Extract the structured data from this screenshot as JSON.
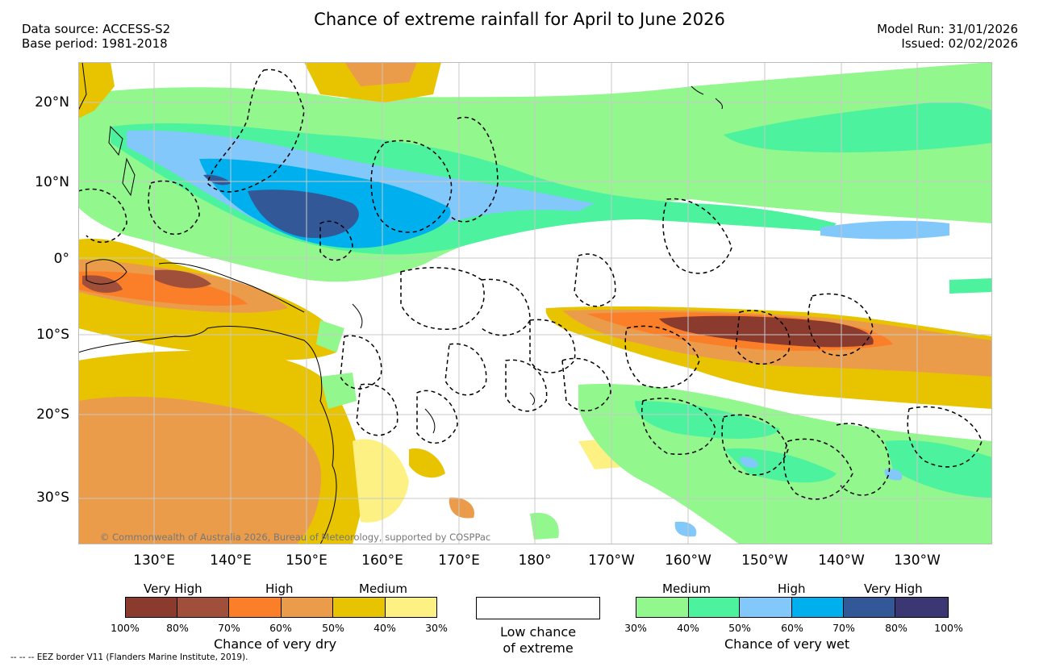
{
  "header": {
    "title": "Chance of extreme rainfall for April to June 2026",
    "data_source": "Data source: ACCESS-S2",
    "base_period": "Base period: 1981-2018",
    "model_run": "Model Run: 31/01/2026",
    "issued": "Issued: 02/02/2026"
  },
  "map": {
    "lat_labels": [
      "20°N",
      "10°N",
      "0°",
      "10°S",
      "20°S",
      "30°S"
    ],
    "lon_labels": [
      "130°E",
      "140°E",
      "150°E",
      "160°E",
      "170°E",
      "180°",
      "170°W",
      "160°W",
      "150°W",
      "140°W",
      "130°W"
    ],
    "copyright": "© Commonwealth of Australia 2026, Bureau of Meteorology, supported by COSPPac",
    "colors": {
      "dry": [
        "#8b3a2e",
        "#a0503a",
        "#fa7f28",
        "#eb9c4b",
        "#e8c400",
        "#fdf183"
      ],
      "wet": [
        "#92f78d",
        "#4cf29e",
        "#83c8fa",
        "#00b0ee",
        "#335897",
        "#3b3773"
      ],
      "land_outline": "#000000"
    }
  },
  "legend": {
    "dry": {
      "categories": [
        "Very High",
        "High",
        "Medium"
      ],
      "percents": [
        "100%",
        "80%",
        "70%",
        "60%",
        "50%",
        "40%",
        "30%"
      ],
      "title": "Chance of very dry"
    },
    "low": {
      "line1": "Low chance",
      "line2": "of extreme"
    },
    "wet": {
      "categories": [
        "Medium",
        "High",
        "Very High"
      ],
      "percents": [
        "30%",
        "40%",
        "50%",
        "60%",
        "70%",
        "80%",
        "100%"
      ],
      "title": "Chance of very wet"
    },
    "eez_note": "--  --  -- EEZ border V11 (Flanders Marine Institute, 2019)."
  }
}
